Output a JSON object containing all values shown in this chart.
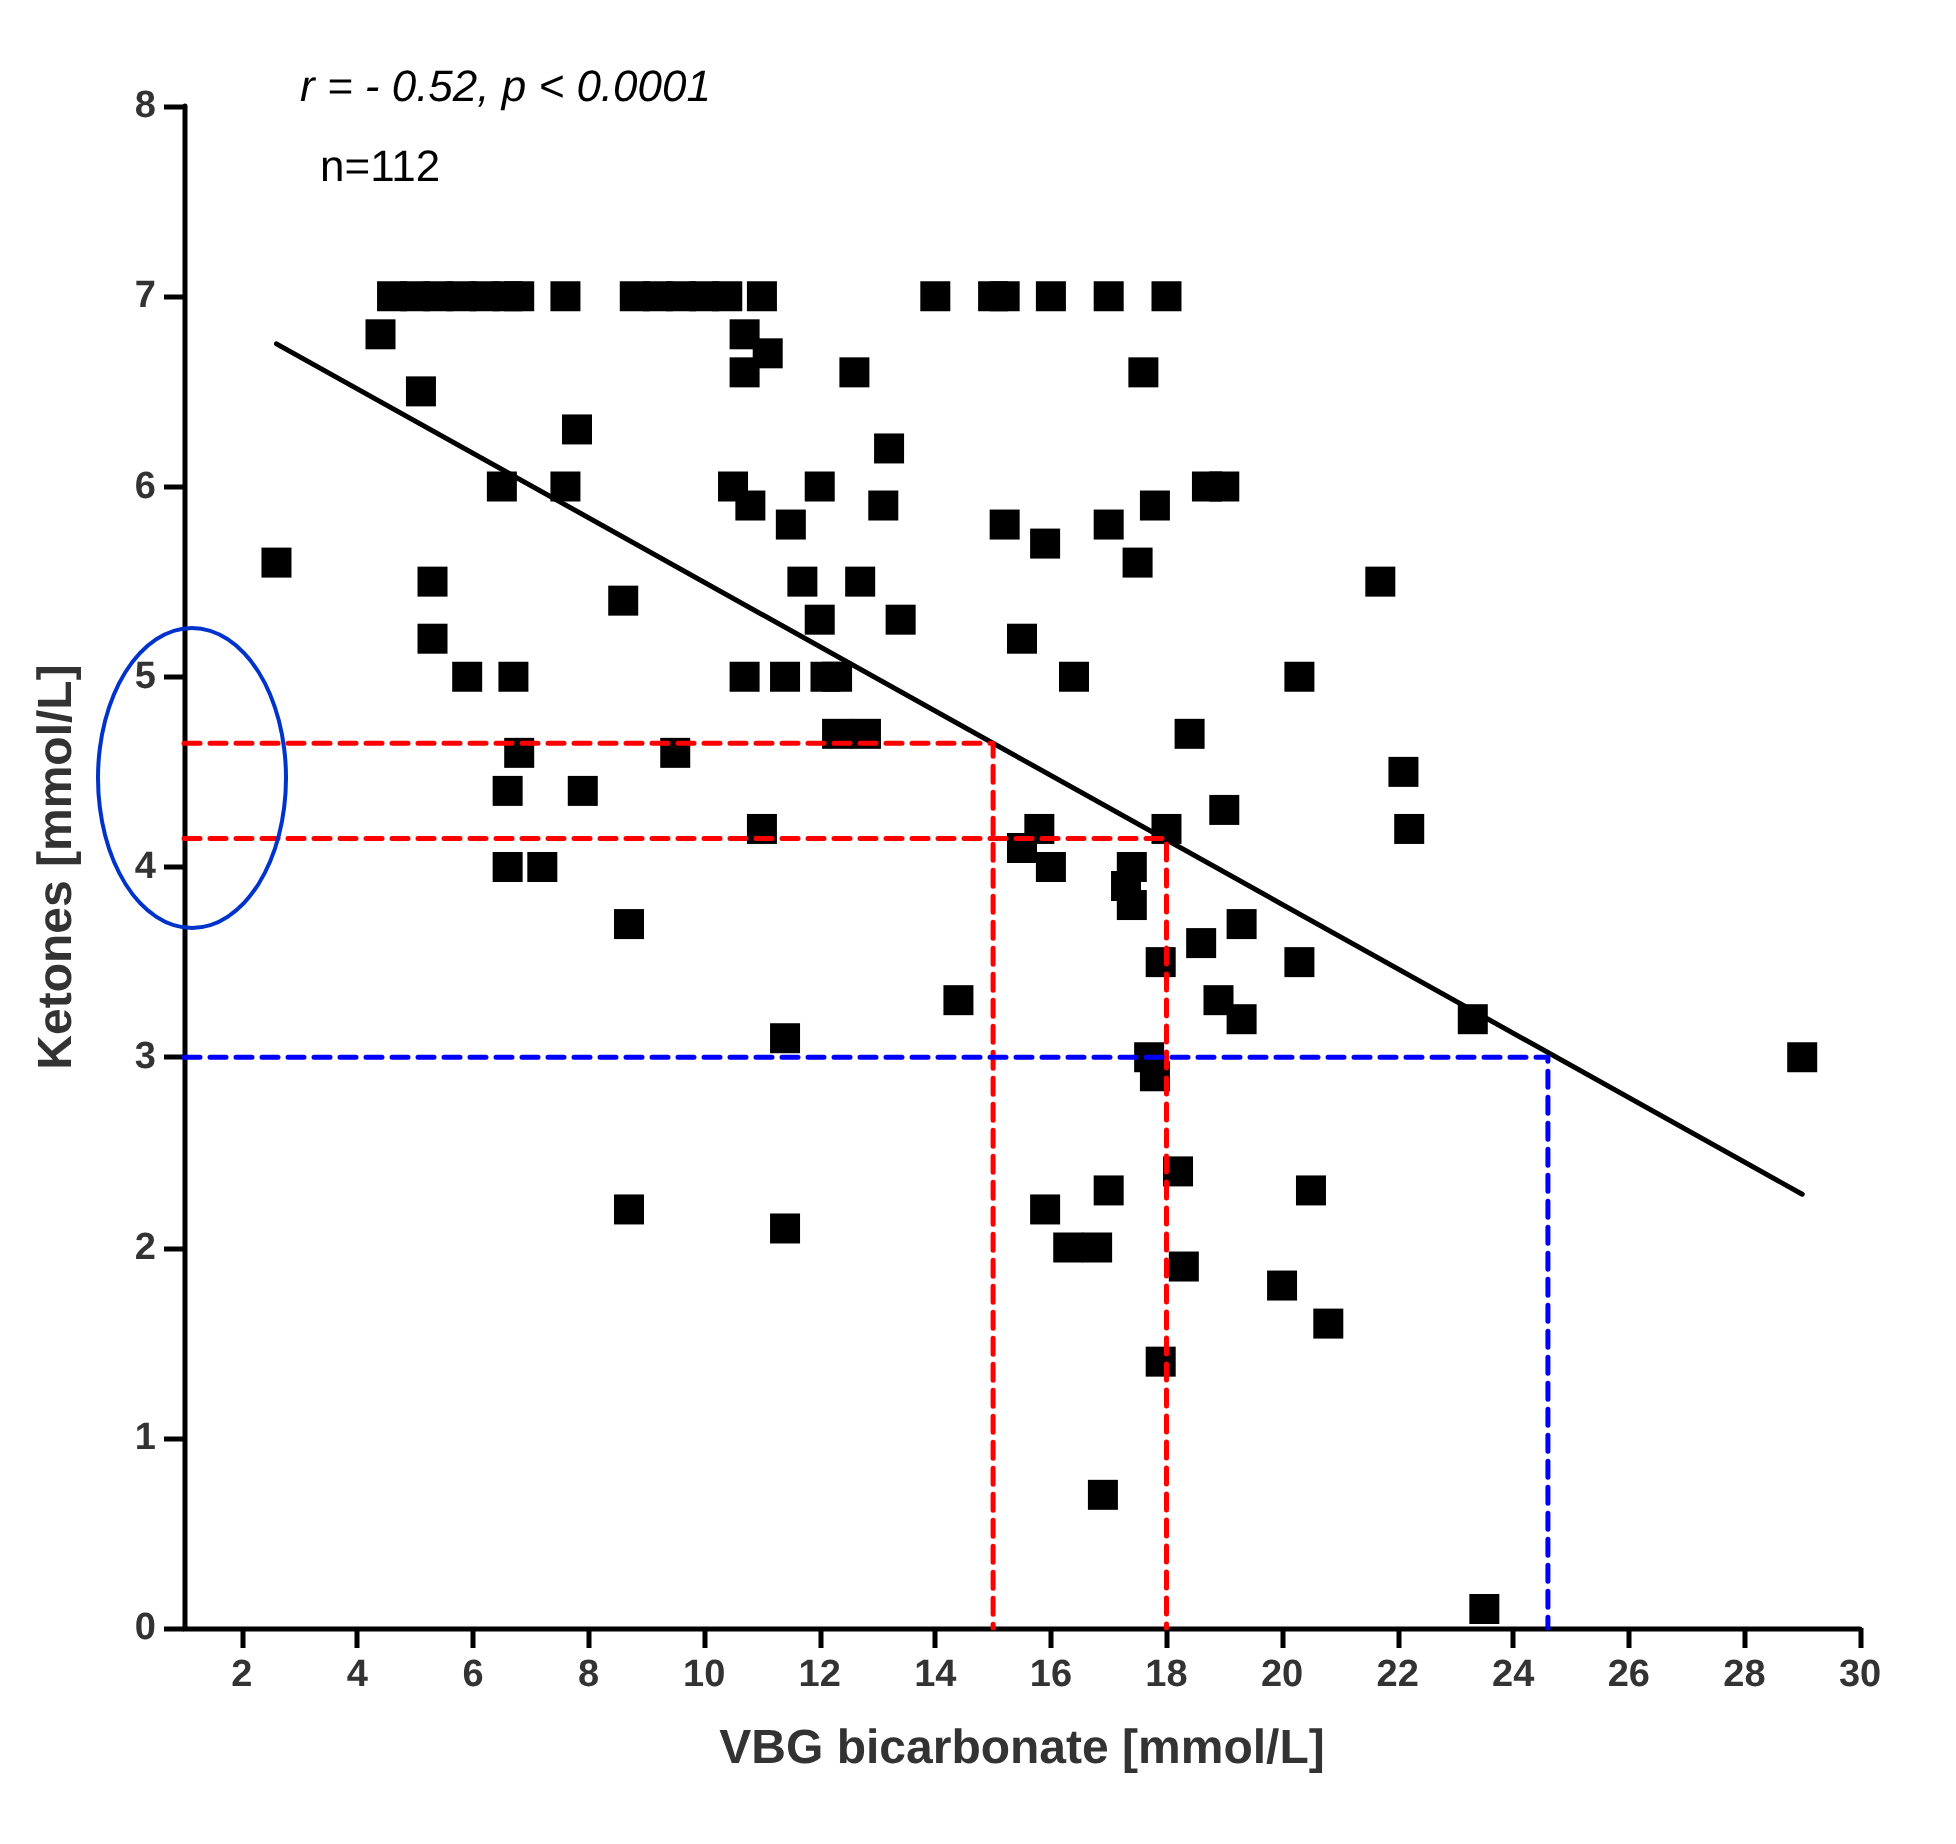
{
  "chart_data": {
    "type": "scatter",
    "xlabel": "VBG bicarbonate [mmol/L]",
    "ylabel": "Ketones [mmol/L]",
    "annotations": [
      "r = - 0.52, p < 0.0001",
      "n=112"
    ],
    "xlim": [
      1,
      30
    ],
    "xticks": [
      2,
      4,
      6,
      8,
      10,
      12,
      14,
      16,
      18,
      20,
      22,
      24,
      26,
      28,
      30
    ],
    "ylim": [
      0,
      8
    ],
    "yticks": [
      0,
      1,
      2,
      3,
      4,
      5,
      6,
      7,
      8
    ],
    "grid": false,
    "marker": "square",
    "series": [
      {
        "color": "#000000",
        "x": [
          4.6,
          5.0,
          5.4,
          5.8,
          6.2,
          6.6,
          6.8,
          7.6,
          8.8,
          9.2,
          9.6,
          10.0,
          10.4,
          11.0,
          14.0,
          15.0,
          15.2,
          16.0,
          17.0,
          18.0,
          4.4,
          5.1,
          2.6,
          5.3,
          5.3,
          5.9,
          6.5,
          6.7,
          7.6,
          7.8,
          8.6,
          6.6,
          6.8,
          7.9,
          6.6,
          7.2,
          8.7,
          9.5,
          8.7,
          10.5,
          10.7,
          10.7,
          11.1,
          10.8,
          10.7,
          11.0,
          11.4,
          11.5,
          11.7,
          12.0,
          12.0,
          12.1,
          12.3,
          12.3,
          12.6,
          12.7,
          12.8,
          13.1,
          13.2,
          13.4,
          11.4,
          11.4,
          14.4,
          15.2,
          15.5,
          15.5,
          15.8,
          15.9,
          16.0,
          16.4,
          15.9,
          16.3,
          16.8,
          17.0,
          17.0,
          16.9,
          17.4,
          17.3,
          17.4,
          17.5,
          17.6,
          17.8,
          17.7,
          17.8,
          17.9,
          18.0,
          17.9,
          18.2,
          18.3,
          18.4,
          18.6,
          18.7,
          19.0,
          18.9,
          19.0,
          19.3,
          19.3,
          20.3,
          20.3,
          20.0,
          20.5,
          20.8,
          21.7,
          22.1,
          22.2,
          23.3,
          23.5,
          29.0
        ],
        "values": [
          7,
          7,
          7,
          7,
          7,
          7,
          7,
          7,
          7,
          7,
          7,
          7,
          7,
          7,
          7,
          7,
          7,
          7,
          7,
          7,
          6.8,
          6.5,
          5.6,
          5.5,
          5.2,
          5.0,
          6.0,
          5.0,
          6.0,
          6.3,
          5.4,
          4.4,
          4.6,
          4.4,
          4.0,
          4.0,
          3.7,
          4.6,
          2.2,
          6.0,
          6.8,
          6.6,
          6.7,
          5.9,
          5.0,
          4.2,
          5.0,
          5.8,
          5.5,
          6.0,
          5.3,
          5.0,
          5.0,
          4.7,
          6.6,
          5.5,
          4.7,
          5.9,
          6.2,
          5.3,
          3.1,
          2.1,
          3.3,
          5.8,
          5.2,
          4.1,
          4.2,
          5.7,
          4.0,
          5.0,
          2.2,
          2.0,
          2.0,
          5.8,
          2.3,
          0.7,
          4.0,
          3.9,
          3.8,
          5.6,
          6.6,
          5.9,
          3.0,
          2.9,
          3.5,
          4.2,
          1.4,
          2.4,
          1.9,
          4.7,
          3.6,
          6.0,
          6.0,
          3.3,
          4.3,
          3.7,
          3.2,
          5.0,
          3.5,
          1.8,
          2.3,
          1.6,
          5.5,
          4.5,
          4.2,
          3.2,
          0.1,
          3.0
        ]
      },
      {
        "type": "line",
        "color": "#000000",
        "marker": "none",
        "line_style": "solid",
        "x": [
          2.6,
          29
        ],
        "values": [
          6.75,
          2.28
        ]
      },
      {
        "type": "line",
        "color": "#ff0000",
        "marker": "none",
        "line_style": "dashed",
        "x": [
          1,
          15,
          15
        ],
        "values": [
          4.65,
          4.65,
          0
        ]
      },
      {
        "type": "line",
        "color": "#ff0000",
        "marker": "none",
        "line_style": "dashed",
        "x": [
          1,
          18,
          18
        ],
        "values": [
          4.15,
          4.15,
          0
        ]
      },
      {
        "type": "line",
        "color": "#0000ff",
        "marker": "none",
        "line_style": "dashed",
        "x": [
          1,
          24.6,
          24.6
        ],
        "values": [
          3,
          3,
          0
        ]
      }
    ]
  }
}
